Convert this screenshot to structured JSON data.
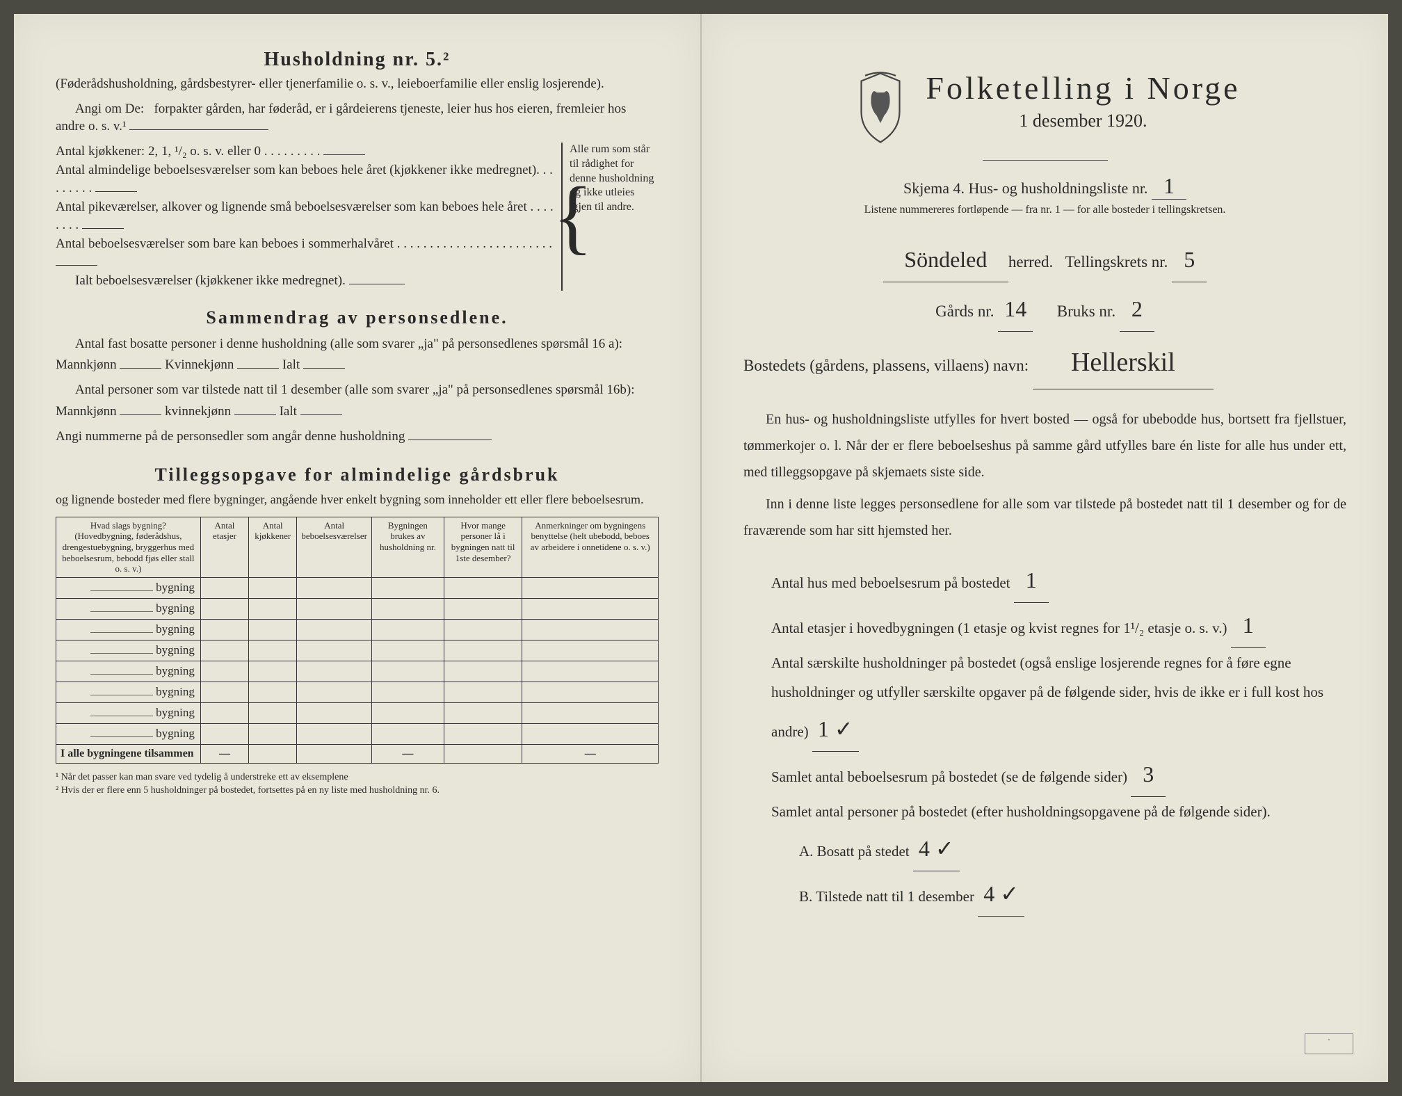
{
  "left": {
    "title": "Husholdning nr. 5.²",
    "intro": "(Føderådshusholdning, gårdsbestyrer- eller tjenerfamilie o. s. v., leieboerfamilie eller enslig losjerende).",
    "angi_prefix": "Angi om De:",
    "angi_text": "forpakter gården, har føderåd, er i gårdeierens tjeneste, leier hus hos eieren, fremleier hos andre o. s. v.¹",
    "kitchens_label": "Antal kjøkkener: 2, 1, ¹/₂ o. s. v. eller 0",
    "rooms1": "Antal almindelige beboelsesværelser som kan beboes hele året (kjøkkener ikke medregnet)",
    "rooms2": "Antal pikeværelser, alkover og lignende små beboelsesværelser som kan beboes hele året",
    "rooms3": "Antal beboelsesværelser som bare kan beboes i sommerhalvåret",
    "rooms_total": "Ialt beboelsesværelser (kjøkkener ikke medregnet).",
    "bracket_note": "Alle rum som står til rådighet for denne husholdning og ikke utleies igjen til andre.",
    "sammendrag_title": "Sammendrag av personsedlene.",
    "sammen1": "Antal fast bosatte personer i denne husholdning (alle som svarer „ja\" på personsedlenes spørsmål 16 a): Mannkjønn",
    "kvinne": "Kvinnekjønn",
    "ialt": "Ialt",
    "sammen2": "Antal personer som var tilstede natt til 1 desember (alle som svarer „ja\" på personsedlenes spørsmål 16b): Mannkjønn",
    "kvinne2": "kvinnekjønn",
    "angi_numrene": "Angi nummerne på de personsedler som angår denne husholdning",
    "tillegg_title": "Tilleggsopgave for almindelige gårdsbruk",
    "tillegg_intro": "og lignende bosteder med flere bygninger, angående hver enkelt bygning som inneholder ett eller flere beboelsesrum.",
    "table": {
      "headers": [
        "Hvad slags bygning?\n(Hovedbygning, føderådshus, drengestuebygning, bryggerhus med beboelsesrum, bebodd fjøs eller stall o. s. v.)",
        "Antal etasjer",
        "Antal kjøkkener",
        "Antal beboelsesværelser",
        "Bygningen brukes av husholdning nr.",
        "Hvor mange personer lå i bygningen natt til 1ste desember?",
        "Anmerkninger om bygningens benyttelse (helt ubebodd, beboes av arbeidere i onnetidene o. s. v.)"
      ],
      "row_label": "bygning",
      "row_count": 8,
      "footer": "I alle bygningene tilsammen"
    },
    "footnote1": "¹ Når det passer kan man svare ved tydelig å understreke ett av eksemplene",
    "footnote2": "² Hvis der er flere enn 5 husholdninger på bostedet, fortsettes på en ny liste med husholdning nr. 6."
  },
  "right": {
    "main_title": "Folketelling i Norge",
    "date": "1 desember 1920.",
    "skjema": "Skjema 4.  Hus- og husholdningsliste nr.",
    "skjema_nr": "1",
    "listene": "Listene nummereres fortløpende — fra nr. 1 — for alle bosteder i tellingskretsen.",
    "herred_value": "Söndeled",
    "herred_label": "herred.",
    "tellingskrets": "Tellingskrets nr.",
    "tellingskrets_nr": "5",
    "gards_label": "Gårds nr.",
    "gards_nr": "14",
    "bruks_label": "Bruks nr.",
    "bruks_nr": "2",
    "bosted_label": "Bostedets (gårdens, plassens, villaens) navn:",
    "bosted_value": "Hellerskil",
    "body1": "En hus- og husholdningsliste utfylles for hvert bosted — også for ubebodde hus, bortsett fra fjellstuer, tømmerkojer o. l. Når der er flere beboelseshus på samme gård utfylles bare én liste for alle hus under ett, med tilleggsopgave på skjemaets siste side.",
    "body2": "Inn i denne liste legges personsedlene for alle som var tilstede på bostedet natt til 1 desember og for de fraværende som har sitt hjemsted her.",
    "q1": "Antal hus med beboelsesrum på bostedet",
    "a1": "1",
    "q2a": "Antal etasjer i hovedbygningen (1 etasje og kvist regnes for 1¹/₂ etasje o. s. v.)",
    "a2": "1",
    "q3": "Antal særskilte husholdninger på bostedet (også enslige losjerende regnes for å føre egne husholdninger og utfyller særskilte opgaver på de følgende sider, hvis de ikke er i full kost hos andre)",
    "a3": "1 ✓",
    "q4": "Samlet antal beboelsesrum på bostedet (se de følgende sider)",
    "a4": "3",
    "q5": "Samlet antal personer på bostedet (efter husholdningsopgavene på de følgende sider).",
    "q5a": "A.  Bosatt på stedet",
    "a5a": "4 ✓",
    "q5b": "B.  Tilstede natt til 1 desember",
    "a5b": "4 ✓"
  },
  "colors": {
    "paper": "#e8e6d8",
    "ink": "#2a2a2a",
    "background": "#4a4a42"
  }
}
